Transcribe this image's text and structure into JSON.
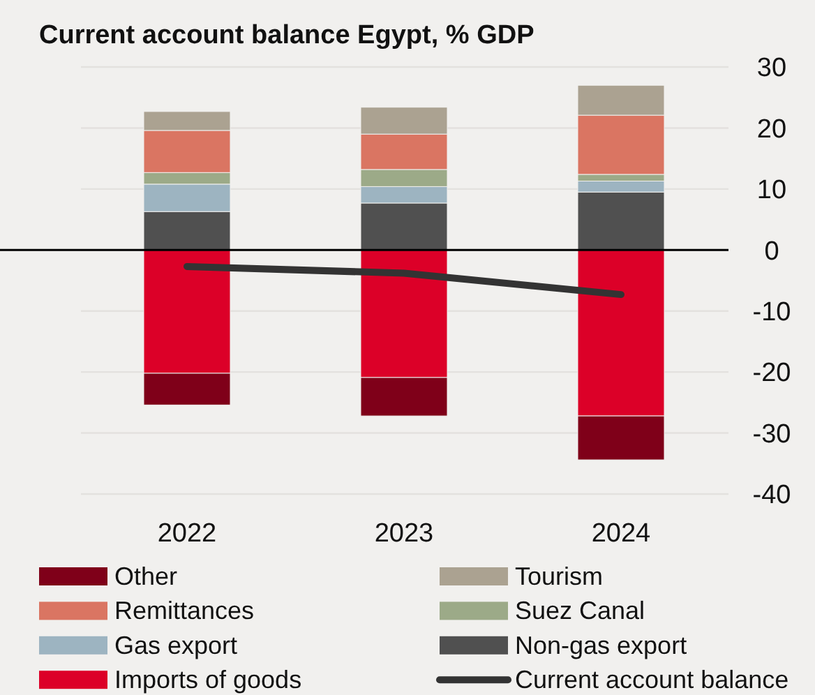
{
  "chart_data": {
    "type": "bar",
    "title": "Current account balance Egypt, % GDP",
    "categories": [
      "2022",
      "2023",
      "2024"
    ],
    "stacked": true,
    "series": [
      {
        "name": "Imports of goods",
        "color": "#dc0028",
        "values": [
          -20.2,
          -20.9,
          -27.2
        ]
      },
      {
        "name": "Non-gas export",
        "color": "#505050",
        "values": [
          6.3,
          7.7,
          9.5
        ]
      },
      {
        "name": "Gas export",
        "color": "#9db4c1",
        "values": [
          4.5,
          2.7,
          1.8
        ]
      },
      {
        "name": "Suez Canal",
        "color": "#9caa88",
        "values": [
          1.9,
          2.8,
          1.1
        ]
      },
      {
        "name": "Remittances",
        "color": "#da7562",
        "values": [
          6.9,
          5.8,
          9.7
        ]
      },
      {
        "name": "Tourism",
        "color": "#aba291",
        "values": [
          3.1,
          4.4,
          4.9
        ]
      },
      {
        "name": "Other",
        "color": "#7f0019",
        "values": [
          -5.2,
          -6.3,
          -7.2
        ]
      },
      {
        "name": "Current account balance",
        "type": "line",
        "color": "#333333",
        "values": [
          -2.7,
          -3.8,
          -7.3
        ]
      }
    ],
    "ylim": [
      -40,
      30
    ],
    "yticks": [
      30,
      20,
      10,
      0,
      -10,
      -20,
      -30,
      -40
    ],
    "grid": "y",
    "legend": "bottom"
  }
}
